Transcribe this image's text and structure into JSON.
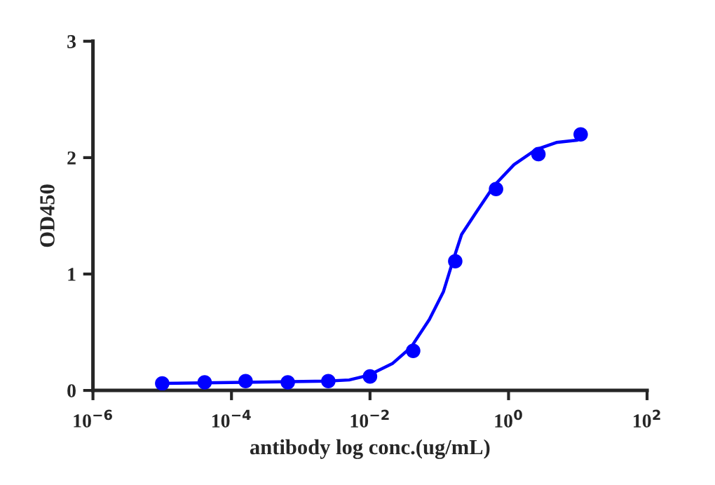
{
  "chart_data": {
    "type": "scatter",
    "xlabel": "antibody log conc.(ug/mL)",
    "ylabel": "OD450",
    "log": "x",
    "grid": false,
    "legend": false,
    "xlim": [
      1e-06,
      100
    ],
    "xticks": [
      {
        "value": 1e-06,
        "label": "10$^{−6}$"
      },
      {
        "value": 0.0001,
        "label": "10$^{−4}$"
      },
      {
        "value": 0.01,
        "label": "10$^{−2}$"
      },
      {
        "value": 1,
        "label": "10$^{0}$"
      },
      {
        "value": 100,
        "label": "10$^{2}$"
      }
    ],
    "ylim": [
      0,
      3
    ],
    "yticks": [
      0,
      1,
      2,
      3
    ],
    "series": [
      {
        "color": "#0000ff",
        "marker": "circle",
        "x": [
          1e-05,
          4.1e-05,
          0.00016,
          0.00065,
          0.0025,
          0.01,
          0.042,
          0.17,
          0.66,
          2.7,
          11
        ],
        "values": [
          0.06,
          0.07,
          0.08,
          0.07,
          0.08,
          0.12,
          0.34,
          1.11,
          1.73,
          2.03,
          2.2
        ]
      },
      {
        "type": "line",
        "color": "#0000ff",
        "marker": "none",
        "line_style": "solid",
        "x": [
          1e-05,
          0.00015,
          0.0024,
          0.005,
          0.0095,
          0.021,
          0.039,
          0.072,
          0.115,
          0.155,
          0.21,
          0.35,
          0.62,
          1.2,
          2.5,
          4.9,
          9.8
        ],
        "values": [
          0.06,
          0.07,
          0.08,
          0.09,
          0.13,
          0.23,
          0.37,
          0.61,
          0.85,
          1.1,
          1.34,
          1.54,
          1.76,
          1.94,
          2.07,
          2.13,
          2.15
        ]
      }
    ]
  }
}
